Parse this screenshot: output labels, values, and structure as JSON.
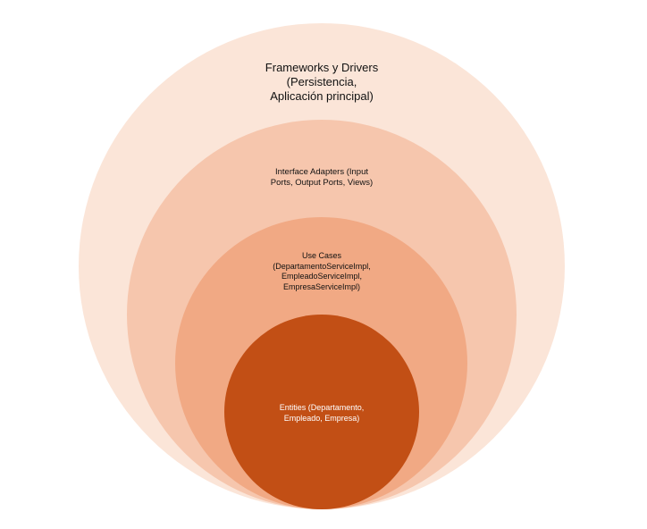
{
  "diagram": {
    "colors": {
      "frameworks": "#FBE5D8",
      "interface_adapters": "#F6C6AD",
      "use_cases": "#F1A984",
      "entities": "#C24F15",
      "text_dark": "#111111",
      "text_light": "#ffffff"
    },
    "layers": {
      "frameworks": "Frameworks y Drivers\n(Persistencia,\nAplicación principal)",
      "interface_adapters": "Interface Adapters (Input\nPorts, Output Ports, Views)",
      "use_cases": "Use Cases\n(DepartamentoServiceImpl,\nEmpleadoServiceImpl,\nEmpresaServiceImpl)",
      "entities": "Entities (Departamento,\nEmpleado, Empresa)"
    }
  }
}
